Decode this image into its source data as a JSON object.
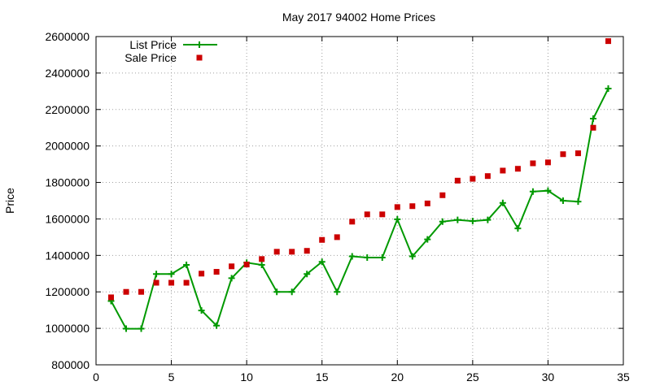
{
  "chart_data": {
    "type": "line",
    "title": "May 2017 94002 Home Prices",
    "xlabel": "",
    "ylabel": "Price",
    "xlim": [
      0,
      35
    ],
    "ylim": [
      800000,
      2600000
    ],
    "xticks": [
      0,
      5,
      10,
      15,
      20,
      25,
      30,
      35
    ],
    "yticks": [
      800000,
      1000000,
      1200000,
      1400000,
      1600000,
      1800000,
      2000000,
      2200000,
      2400000,
      2600000
    ],
    "grid": true,
    "legend": "top-left",
    "series": [
      {
        "name": "List Price",
        "style": "line+cross",
        "color": "#009900",
        "x": [
          1,
          2,
          3,
          4,
          5,
          6,
          7,
          8,
          9,
          10,
          11,
          12,
          13,
          14,
          15,
          16,
          17,
          18,
          19,
          20,
          21,
          22,
          23,
          24,
          25,
          26,
          27,
          28,
          29,
          30,
          31,
          32,
          33,
          34
        ],
        "values": [
          1150000,
          998000,
          998000,
          1298000,
          1298000,
          1348000,
          1098000,
          1015000,
          1275000,
          1360000,
          1348000,
          1200000,
          1200000,
          1298000,
          1365000,
          1200000,
          1395000,
          1388000,
          1388000,
          1598000,
          1395000,
          1488000,
          1585000,
          1595000,
          1588000,
          1595000,
          1688000,
          1548000,
          1750000,
          1755000,
          1700000,
          1695000,
          2150000,
          2315000
        ]
      },
      {
        "name": "Sale Price",
        "style": "square",
        "color": "#cc0000",
        "x": [
          1,
          2,
          3,
          4,
          5,
          6,
          7,
          8,
          9,
          10,
          11,
          12,
          13,
          14,
          15,
          16,
          17,
          18,
          19,
          20,
          21,
          22,
          23,
          24,
          25,
          26,
          27,
          28,
          29,
          30,
          31,
          32,
          33,
          34
        ],
        "values": [
          1170000,
          1200000,
          1200000,
          1250000,
          1250000,
          1250000,
          1300000,
          1310000,
          1340000,
          1350000,
          1380000,
          1420000,
          1420000,
          1425000,
          1485000,
          1500000,
          1585000,
          1625000,
          1625000,
          1665000,
          1670000,
          1685000,
          1730000,
          1810000,
          1820000,
          1835000,
          1865000,
          1875000,
          1905000,
          1910000,
          1955000,
          1960000,
          2100000,
          2575000
        ]
      }
    ]
  }
}
